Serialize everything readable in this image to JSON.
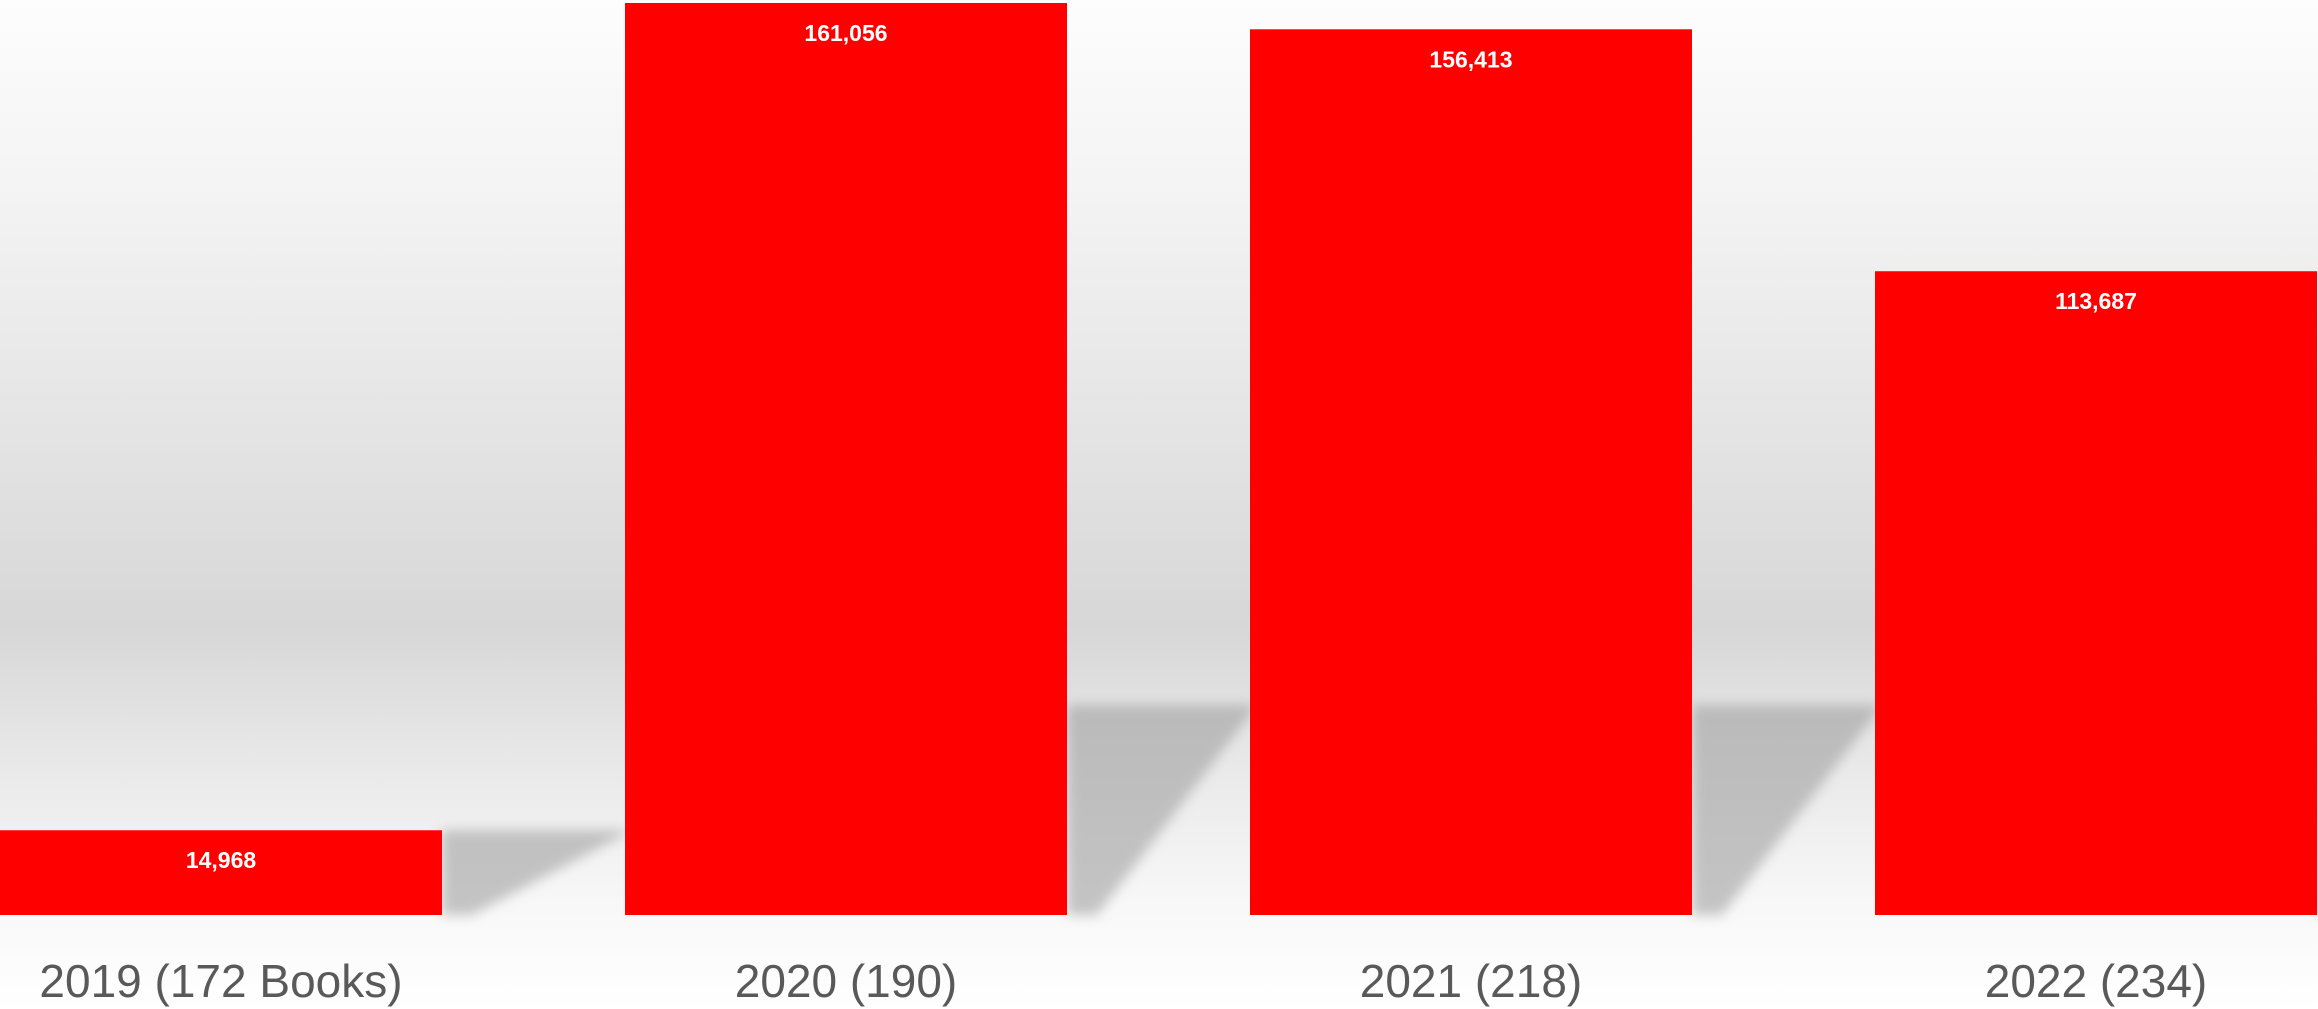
{
  "chart_data": {
    "type": "bar",
    "categories": [
      "2019 (172 Books)",
      "2020 (190)",
      "2021 (218)",
      "2022 (234)"
    ],
    "values": [
      14968,
      161056,
      156413,
      113687
    ],
    "data_labels": [
      "14,968",
      "161,056",
      "156,413",
      "113,687"
    ],
    "title": "",
    "xlabel": "",
    "ylabel": "",
    "ylim": [
      0,
      161056
    ],
    "grid": false,
    "legend": "none",
    "bar_color": "#ff0000",
    "label_color": "#ffffff",
    "tick_label_color": "#595959"
  }
}
